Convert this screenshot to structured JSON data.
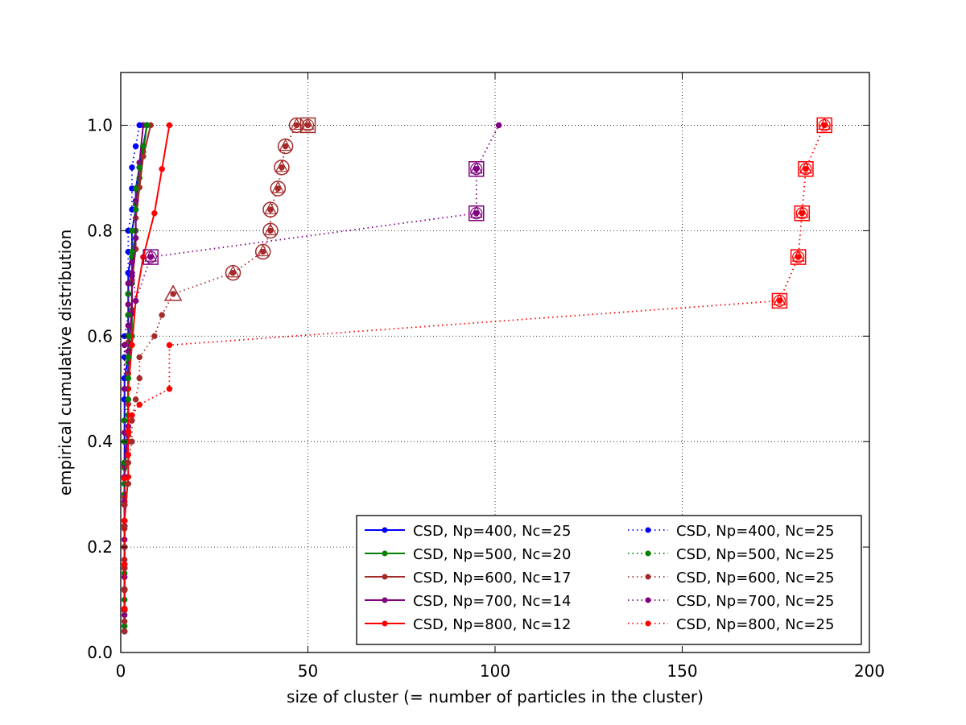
{
  "chart_data": {
    "type": "line",
    "title": "",
    "xlabel": "size of cluster (= number of particles in the cluster)",
    "ylabel": "empirical cumulative distribution",
    "xlim": [
      0,
      200
    ],
    "ylim": [
      0,
      1.1
    ],
    "xticks": [
      0,
      50,
      100,
      150,
      200
    ],
    "xtick_labels": [
      "0",
      "50",
      "100",
      "150",
      "200"
    ],
    "yticks": [
      0,
      0.2,
      0.4,
      0.6,
      0.8,
      1.0
    ],
    "ytick_labels": [
      "0.0",
      "0.2",
      "0.4",
      "0.6",
      "0.8",
      "1.0"
    ],
    "grid": true,
    "legend_position": "lower-right",
    "series": [
      {
        "name": "CSD, Np=400, Nc=25",
        "color": "#0000ff",
        "style": "solid",
        "markers": [],
        "x": [
          1,
          1,
          1,
          1,
          1,
          1,
          1,
          1,
          1,
          1,
          1,
          1,
          1,
          2,
          2,
          2,
          2,
          2,
          3,
          3,
          4,
          4,
          5,
          6,
          7
        ],
        "y": [
          0.04,
          0.08,
          0.12,
          0.16,
          0.2,
          0.24,
          0.28,
          0.32,
          0.36,
          0.4,
          0.44,
          0.48,
          0.52,
          0.56,
          0.6,
          0.64,
          0.68,
          0.72,
          0.76,
          0.8,
          0.84,
          0.88,
          0.92,
          0.96,
          1.0
        ]
      },
      {
        "name": "CSD, Np=500, Nc=20",
        "color": "#008000",
        "style": "solid",
        "markers": [],
        "x": [
          1,
          1,
          1,
          1,
          1,
          1,
          1,
          2,
          2,
          2,
          2,
          3,
          3,
          3,
          3,
          4,
          4,
          5,
          6,
          7
        ],
        "y": [
          0.05,
          0.1,
          0.15,
          0.2,
          0.25,
          0.3,
          0.35,
          0.4,
          0.45,
          0.5,
          0.55,
          0.6,
          0.65,
          0.7,
          0.75,
          0.8,
          0.85,
          0.9,
          0.95,
          1.0
        ]
      },
      {
        "name": "CSD, Np=600, Nc=17",
        "color": "#a52a2a",
        "style": "solid",
        "markers": [],
        "x": [
          1,
          1,
          1,
          1,
          1,
          1,
          2,
          2,
          2,
          2,
          3,
          3,
          4,
          4,
          5,
          6,
          8
        ],
        "y": [
          0.059,
          0.118,
          0.176,
          0.235,
          0.294,
          0.353,
          0.412,
          0.471,
          0.529,
          0.588,
          0.647,
          0.706,
          0.765,
          0.824,
          0.882,
          0.941,
          1.0
        ]
      },
      {
        "name": "CSD, Np=700, Nc=14",
        "color": "#800080",
        "style": "solid",
        "markers": [],
        "x": [
          1,
          1,
          1,
          1,
          1,
          2,
          2,
          2,
          3,
          3,
          4,
          4,
          5,
          6
        ],
        "y": [
          0.071,
          0.143,
          0.214,
          0.286,
          0.357,
          0.429,
          0.5,
          0.571,
          0.643,
          0.714,
          0.786,
          0.857,
          0.929,
          1.0
        ]
      },
      {
        "name": "CSD, Np=800, Nc=12",
        "color": "#ff0000",
        "style": "solid",
        "markers": [],
        "x": [
          1,
          1,
          1,
          2,
          2,
          2,
          3,
          4,
          6,
          9,
          11,
          13
        ],
        "y": [
          0.083,
          0.167,
          0.25,
          0.333,
          0.417,
          0.5,
          0.583,
          0.667,
          0.75,
          0.833,
          0.917,
          1.0
        ]
      },
      {
        "name": "CSD, Np=400, Nc=25",
        "color": "#0000ff",
        "style": "dotted",
        "markers": [],
        "x": [
          1,
          1,
          1,
          1,
          1,
          1,
          1,
          1,
          1,
          1,
          1,
          1,
          1,
          1,
          1,
          2,
          2,
          2,
          2,
          2,
          3,
          3,
          3,
          4,
          5
        ],
        "y": [
          0.04,
          0.08,
          0.12,
          0.16,
          0.2,
          0.24,
          0.28,
          0.32,
          0.36,
          0.4,
          0.44,
          0.48,
          0.52,
          0.56,
          0.6,
          0.64,
          0.68,
          0.72,
          0.76,
          0.8,
          0.84,
          0.88,
          0.92,
          0.96,
          1.0
        ]
      },
      {
        "name": "CSD, Np=500, Nc=25",
        "color": "#008000",
        "style": "dotted",
        "markers": [],
        "x": [
          1,
          1,
          1,
          1,
          1,
          1,
          1,
          1,
          1,
          1,
          1,
          2,
          2,
          2,
          2,
          2,
          2,
          3,
          3,
          3,
          4,
          4,
          5,
          6,
          7
        ],
        "y": [
          0.04,
          0.08,
          0.12,
          0.16,
          0.2,
          0.24,
          0.28,
          0.32,
          0.36,
          0.4,
          0.44,
          0.48,
          0.52,
          0.56,
          0.6,
          0.64,
          0.68,
          0.72,
          0.76,
          0.8,
          0.84,
          0.88,
          0.92,
          0.96,
          1.0
        ]
      },
      {
        "name": "CSD, Np=600, Nc=25",
        "color": "#a52a2a",
        "style": "dotted",
        "markers": [
          "triangle",
          "circle",
          "circle",
          "circle",
          "circle",
          "circle",
          "circle",
          "circle",
          "circle",
          "box"
        ],
        "marker_from": 16,
        "x": [
          1,
          1,
          1,
          1,
          1,
          1,
          1,
          2,
          2,
          3,
          3,
          4,
          5,
          5,
          9,
          11,
          14,
          30,
          38,
          40,
          40,
          42,
          43,
          44,
          47,
          50
        ],
        "y": [
          0.04,
          0.08,
          0.12,
          0.16,
          0.2,
          0.24,
          0.28,
          0.32,
          0.36,
          0.4,
          0.44,
          0.48,
          0.52,
          0.56,
          0.6,
          0.64,
          0.68,
          0.72,
          0.76,
          0.8,
          0.84,
          0.88,
          0.92,
          0.96,
          1.0,
          1.0
        ]
      },
      {
        "name": "CSD, Np=700, Nc=25",
        "color": "#800080",
        "style": "dotted",
        "markers": [
          "box",
          "box",
          "box"
        ],
        "marker_from": 13,
        "x": [
          1,
          1,
          1,
          1,
          1,
          1,
          1,
          2,
          2,
          2,
          3,
          3,
          4,
          8,
          95,
          95,
          101
        ],
        "y": [
          0.083,
          0.167,
          0.25,
          0.333,
          0.417,
          0.5,
          0.583,
          0.62,
          0.66,
          0.7,
          0.72,
          0.74,
          0.667,
          0.75,
          0.833,
          0.917,
          1.0
        ]
      },
      {
        "name": "CSD, Np=800, Nc=25",
        "color": "#ff0000",
        "style": "dotted",
        "markers": [
          "box",
          "box",
          "box",
          "box",
          "box",
          "box"
        ],
        "marker_from": 10,
        "x": [
          1,
          1,
          1,
          1,
          2,
          2,
          3,
          5,
          13,
          13,
          176,
          181,
          182,
          183,
          188
        ],
        "y": [
          0.083,
          0.167,
          0.25,
          0.33,
          0.375,
          0.42,
          0.45,
          0.47,
          0.5,
          0.583,
          0.667,
          0.75,
          0.833,
          0.917,
          1.0
        ]
      }
    ]
  }
}
